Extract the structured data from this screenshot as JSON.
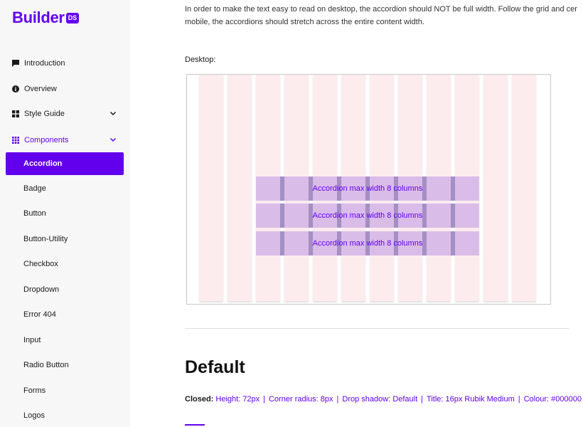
{
  "logo": {
    "text": "Builder",
    "badge": "DS"
  },
  "sidebar": {
    "items": [
      {
        "label": "Introduction",
        "icon": "chat-bubble-icon"
      },
      {
        "label": "Overview",
        "icon": "info-icon"
      },
      {
        "label": "Style Guide",
        "icon": "grid-squares-icon"
      },
      {
        "label": "Components",
        "icon": "apps-grid-icon"
      }
    ],
    "active": "Accordion",
    "sub_items": [
      "Badge",
      "Button",
      "Button-Utility",
      "Checkbox",
      "Dropdown",
      "Error 404",
      "Input",
      "Radio Button",
      "Forms",
      "Logos"
    ]
  },
  "main": {
    "intro_line1": "In order to make the text easy to read on desktop, the accordion should NOT be full width. Follow the grid and cer",
    "intro_line2": "mobile, the accordions should stretch across the entire content width.",
    "desktop_label": "Desktop:",
    "accordion_label": "Accordion max width 8 columns",
    "section_title": "Default",
    "closed_label": "Closed:",
    "closed_specs": [
      "Height: 72px",
      "Corner radius: 8px",
      "Drop shadow: Default",
      "Title: 16px Rubik Medium",
      "Colour: #000000"
    ]
  },
  "colors": {
    "accent": "#6200ee",
    "column": "#fdeced",
    "accordion": "#d7bff0"
  }
}
